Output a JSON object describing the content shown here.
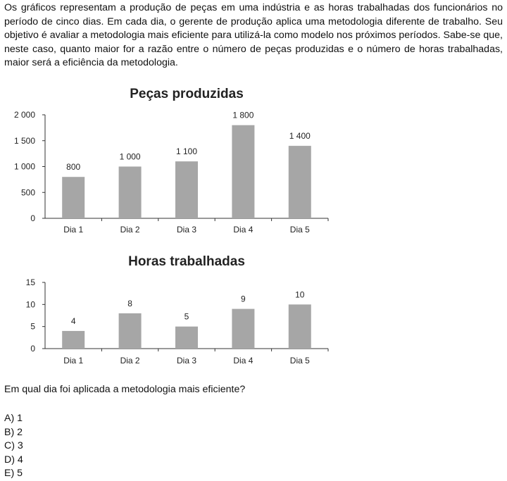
{
  "intro": "Os gráficos representam a produção de peças em uma indústria e as horas trabalhadas dos funcionários no período de cinco dias. Em cada dia, o gerente de produção aplica uma metodologia diferente de trabalho. Seu objetivo é avaliar a metodologia mais eficiente para utilizá-la como modelo nos próximos períodos. Sabe-se que, neste caso, quanto maior for a razão entre o número de peças produzidas e o número de horas trabalhadas, maior será a eficiência da metodologia.",
  "chart_data": [
    {
      "type": "bar",
      "title": "Peças produzidas",
      "categories": [
        "Dia 1",
        "Dia 2",
        "Dia 3",
        "Dia 4",
        "Dia 5"
      ],
      "values": [
        800,
        1000,
        1100,
        1800,
        1400
      ],
      "value_labels": [
        "800",
        "1 000",
        "1 100",
        "1 800",
        "1 400"
      ],
      "ylim": [
        0,
        2000
      ],
      "yticks": [
        0,
        500,
        1000,
        1500,
        2000
      ],
      "ytick_labels": [
        "0",
        "500",
        "1 000",
        "1 500",
        "2 000"
      ],
      "xlabel": "",
      "ylabel": "",
      "grid": false,
      "bar_color": "#a6a6a6"
    },
    {
      "type": "bar",
      "title": "Horas trabalhadas",
      "categories": [
        "Dia 1",
        "Dia 2",
        "Dia 3",
        "Dia 4",
        "Dia 5"
      ],
      "values": [
        4,
        8,
        5,
        9,
        10
      ],
      "value_labels": [
        "4",
        "8",
        "5",
        "9",
        "10"
      ],
      "ylim": [
        0,
        15
      ],
      "yticks": [
        0,
        5,
        10,
        15
      ],
      "ytick_labels": [
        "0",
        "5",
        "10",
        "15"
      ],
      "xlabel": "",
      "ylabel": "",
      "grid": false,
      "bar_color": "#a6a6a6"
    }
  ],
  "question": "Em qual dia foi aplicada a metodologia mais eficiente?",
  "options": [
    "A) 1",
    "B) 2",
    "C) 3",
    "D) 4",
    "E) 5"
  ]
}
